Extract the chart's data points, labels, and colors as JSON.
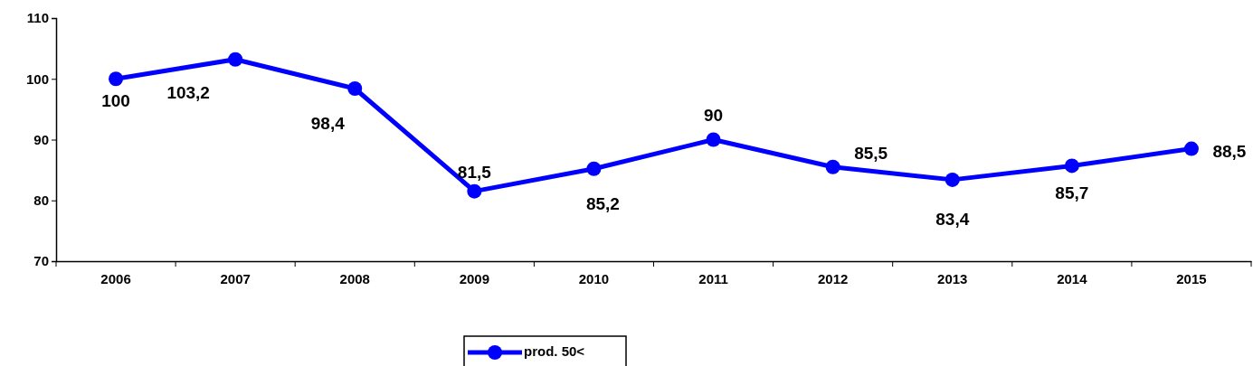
{
  "chart_data": {
    "type": "line",
    "categories": [
      "2006",
      "2007",
      "2008",
      "2009",
      "2010",
      "2011",
      "2012",
      "2013",
      "2014",
      "2015"
    ],
    "series": [
      {
        "name": "prod. 50<",
        "color": "#0000ff",
        "values": [
          100,
          103.2,
          98.4,
          81.5,
          85.2,
          90,
          85.5,
          83.4,
          85.7,
          88.5
        ],
        "value_labels": [
          "100",
          "103,2",
          "98,4",
          "81,5",
          "85,2",
          "90",
          "85,5",
          "83,4",
          "85,7",
          "88,5"
        ]
      }
    ],
    "ylim": [
      70,
      110
    ],
    "yticks": [
      70,
      80,
      90,
      100,
      110
    ],
    "grid": false,
    "legend": "bottom",
    "marker": "circle",
    "line_style": "solid"
  }
}
